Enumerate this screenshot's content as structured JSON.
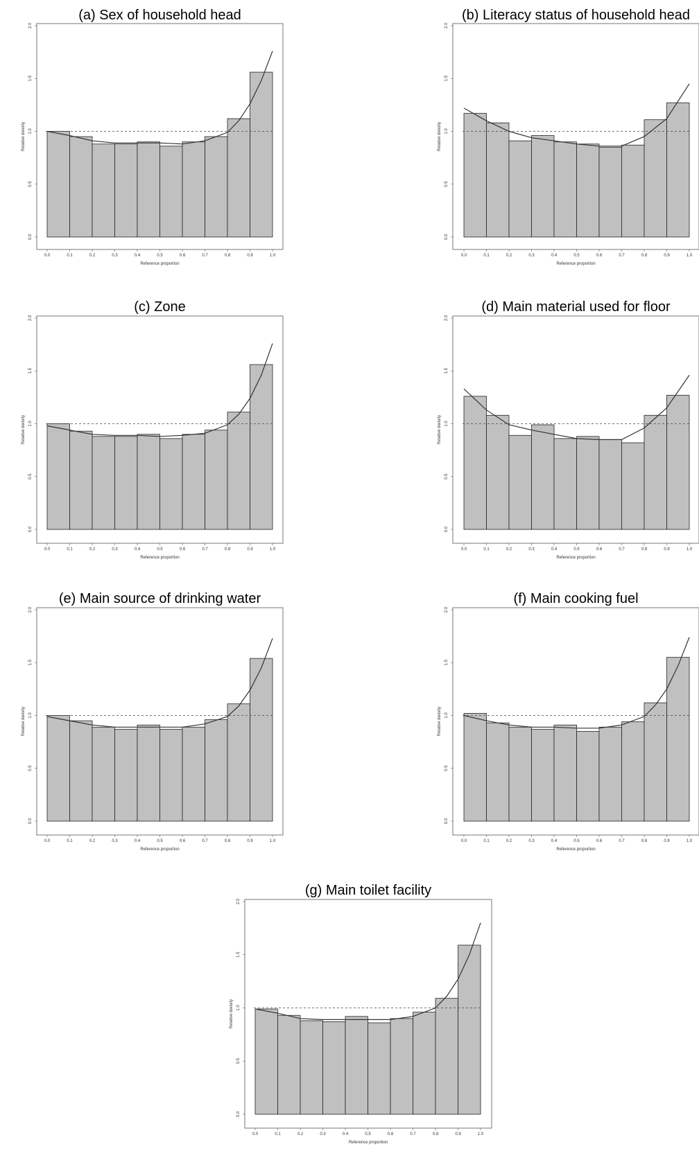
{
  "chart_data": [
    {
      "type": "bar",
      "title": "(a) Sex of household head",
      "xlabel": "Reference proportion",
      "ylabel": "Relative density",
      "xlim": [
        0,
        1
      ],
      "ylim": [
        0,
        2
      ],
      "xticks": [
        "0.0",
        "0.1",
        "0.2",
        "0.3",
        "0.4",
        "0.5",
        "0.6",
        "0.7",
        "0.8",
        "0.9",
        "1.0"
      ],
      "yticks": [
        "0.0",
        "0.5",
        "1.0",
        "1.5",
        "2.0"
      ],
      "bin_edges": [
        0,
        0.1,
        0.2,
        0.3,
        0.4,
        0.5,
        0.6,
        0.7,
        0.8,
        0.9,
        1.0
      ],
      "values": [
        1.0,
        0.95,
        0.88,
        0.88,
        0.9,
        0.86,
        0.9,
        0.95,
        1.12,
        1.56
      ],
      "reference_line": 1.0,
      "smooth_curve": {
        "x": [
          0.0,
          0.1,
          0.2,
          0.3,
          0.4,
          0.5,
          0.6,
          0.7,
          0.8,
          0.85,
          0.9,
          0.95,
          1.0
        ],
        "y": [
          1.0,
          0.96,
          0.91,
          0.89,
          0.89,
          0.89,
          0.88,
          0.91,
          0.99,
          1.1,
          1.26,
          1.48,
          1.76
        ]
      },
      "grid": false,
      "color": "#c0c0c0"
    },
    {
      "type": "bar",
      "title": "(b) Literacy status of household head",
      "xlabel": "Reference proportion",
      "ylabel": "Relative density",
      "xlim": [
        0,
        1
      ],
      "ylim": [
        0,
        2
      ],
      "xticks": [
        "0.0",
        "0.1",
        "0.2",
        "0.3",
        "0.4",
        "0.5",
        "0.6",
        "0.7",
        "0.8",
        "0.9",
        "1.0"
      ],
      "yticks": [
        "0.0",
        "0.5",
        "1.0",
        "1.5",
        "2.0"
      ],
      "bin_edges": [
        0,
        0.1,
        0.2,
        0.3,
        0.4,
        0.5,
        0.6,
        0.7,
        0.8,
        0.9,
        1.0
      ],
      "values": [
        1.17,
        1.08,
        0.91,
        0.96,
        0.9,
        0.88,
        0.85,
        0.87,
        1.11,
        1.27
      ],
      "reference_line": 1.0,
      "smooth_curve": {
        "x": [
          0.0,
          0.1,
          0.2,
          0.3,
          0.4,
          0.5,
          0.6,
          0.7,
          0.8,
          0.9,
          1.0
        ],
        "y": [
          1.22,
          1.1,
          1.0,
          0.94,
          0.91,
          0.88,
          0.86,
          0.86,
          0.95,
          1.12,
          1.45
        ]
      },
      "grid": false,
      "color": "#c0c0c0"
    },
    {
      "type": "bar",
      "title": "(c) Zone",
      "xlabel": "Reference proportion",
      "ylabel": "Relative density",
      "xlim": [
        0,
        1
      ],
      "ylim": [
        0,
        2
      ],
      "xticks": [
        "0.0",
        "0.1",
        "0.2",
        "0.3",
        "0.4",
        "0.5",
        "0.6",
        "0.7",
        "0.8",
        "0.9",
        "1.0"
      ],
      "yticks": [
        "0.0",
        "0.5",
        "1.0",
        "1.5",
        "2.0"
      ],
      "bin_edges": [
        0,
        0.1,
        0.2,
        0.3,
        0.4,
        0.5,
        0.6,
        0.7,
        0.8,
        0.9,
        1.0
      ],
      "values": [
        1.0,
        0.93,
        0.88,
        0.88,
        0.9,
        0.86,
        0.9,
        0.94,
        1.11,
        1.56
      ],
      "reference_line": 1.0,
      "smooth_curve": {
        "x": [
          0.0,
          0.1,
          0.2,
          0.3,
          0.4,
          0.5,
          0.6,
          0.7,
          0.8,
          0.85,
          0.9,
          0.95,
          1.0
        ],
        "y": [
          0.98,
          0.94,
          0.9,
          0.89,
          0.89,
          0.88,
          0.89,
          0.91,
          0.99,
          1.09,
          1.24,
          1.46,
          1.76
        ]
      },
      "grid": false,
      "color": "#c0c0c0"
    },
    {
      "type": "bar",
      "title": "(d) Main material used for floor",
      "xlabel": "Reference proportion",
      "ylabel": "Relative density",
      "xlim": [
        0,
        1
      ],
      "ylim": [
        0,
        2
      ],
      "xticks": [
        "0.0",
        "0.1",
        "0.2",
        "0.3",
        "0.4",
        "0.5",
        "0.6",
        "0.7",
        "0.8",
        "0.9",
        "1.0"
      ],
      "yticks": [
        "0.0",
        "0.5",
        "1.0",
        "1.5",
        "2.0"
      ],
      "bin_edges": [
        0,
        0.1,
        0.2,
        0.3,
        0.4,
        0.5,
        0.6,
        0.7,
        0.8,
        0.9,
        1.0
      ],
      "values": [
        1.26,
        1.08,
        0.89,
        0.99,
        0.86,
        0.88,
        0.85,
        0.82,
        1.08,
        1.27
      ],
      "reference_line": 1.0,
      "smooth_curve": {
        "x": [
          0.0,
          0.1,
          0.2,
          0.3,
          0.4,
          0.5,
          0.6,
          0.7,
          0.8,
          0.9,
          1.0
        ],
        "y": [
          1.33,
          1.13,
          0.99,
          0.94,
          0.9,
          0.86,
          0.85,
          0.85,
          0.96,
          1.15,
          1.46
        ]
      },
      "grid": false,
      "color": "#c0c0c0"
    },
    {
      "type": "bar",
      "title": "(e) Main source of drinking water",
      "xlabel": "Reference proportion",
      "ylabel": "Relative density",
      "xlim": [
        0,
        1
      ],
      "ylim": [
        0,
        2
      ],
      "xticks": [
        "0.0",
        "0.1",
        "0.2",
        "0.3",
        "0.4",
        "0.5",
        "0.6",
        "0.7",
        "0.8",
        "0.9",
        "1.0"
      ],
      "yticks": [
        "0.0",
        "0.5",
        "1.0",
        "1.5",
        "2.0"
      ],
      "bin_edges": [
        0,
        0.1,
        0.2,
        0.3,
        0.4,
        0.5,
        0.6,
        0.7,
        0.8,
        0.9,
        1.0
      ],
      "values": [
        1.0,
        0.95,
        0.89,
        0.87,
        0.91,
        0.87,
        0.89,
        0.96,
        1.11,
        1.54
      ],
      "reference_line": 1.0,
      "smooth_curve": {
        "x": [
          0.0,
          0.1,
          0.2,
          0.3,
          0.4,
          0.5,
          0.6,
          0.7,
          0.8,
          0.85,
          0.9,
          0.95,
          1.0
        ],
        "y": [
          0.99,
          0.95,
          0.91,
          0.89,
          0.89,
          0.89,
          0.89,
          0.92,
          0.99,
          1.09,
          1.24,
          1.45,
          1.73
        ]
      },
      "grid": false,
      "color": "#c0c0c0"
    },
    {
      "type": "bar",
      "title": "(f) Main cooking fuel",
      "xlabel": "Reference proportion",
      "ylabel": "Relative density",
      "xlim": [
        0,
        1
      ],
      "ylim": [
        0,
        2
      ],
      "xticks": [
        "0.0",
        "0.1",
        "0.2",
        "0.3",
        "0.4",
        "0.5",
        "0.6",
        "0.7",
        "0.8",
        "0.9",
        "1.0"
      ],
      "yticks": [
        "0.0",
        "0.5",
        "1.0",
        "1.5",
        "2.0"
      ],
      "bin_edges": [
        0,
        0.1,
        0.2,
        0.3,
        0.4,
        0.5,
        0.6,
        0.7,
        0.8,
        0.9,
        1.0
      ],
      "values": [
        1.02,
        0.93,
        0.89,
        0.87,
        0.91,
        0.85,
        0.89,
        0.94,
        1.12,
        1.55
      ],
      "reference_line": 1.0,
      "smooth_curve": {
        "x": [
          0.0,
          0.1,
          0.2,
          0.3,
          0.4,
          0.5,
          0.6,
          0.7,
          0.8,
          0.85,
          0.9,
          0.95,
          1.0
        ],
        "y": [
          1.0,
          0.95,
          0.91,
          0.89,
          0.89,
          0.88,
          0.88,
          0.91,
          0.99,
          1.1,
          1.25,
          1.47,
          1.74
        ]
      },
      "grid": false,
      "color": "#c0c0c0"
    },
    {
      "type": "bar",
      "title": "(g) Main toilet facility",
      "xlabel": "Reference proportion",
      "ylabel": "Relative density",
      "xlim": [
        0,
        1
      ],
      "ylim": [
        0,
        2
      ],
      "xticks": [
        "0.0",
        "0.1",
        "0.2",
        "0.3",
        "0.4",
        "0.5",
        "0.6",
        "0.7",
        "0.8",
        "0.9",
        "1.0"
      ],
      "yticks": [
        "0.0",
        "0.5",
        "1.0",
        "1.5",
        "2.0"
      ],
      "bin_edges": [
        0,
        0.1,
        0.2,
        0.3,
        0.4,
        0.5,
        0.6,
        0.7,
        0.8,
        0.9,
        1.0
      ],
      "values": [
        0.99,
        0.93,
        0.88,
        0.87,
        0.92,
        0.86,
        0.9,
        0.96,
        1.09,
        1.59
      ],
      "reference_line": 1.0,
      "smooth_curve": {
        "x": [
          0.0,
          0.1,
          0.2,
          0.3,
          0.4,
          0.5,
          0.6,
          0.7,
          0.8,
          0.85,
          0.9,
          0.95,
          1.0
        ],
        "y": [
          0.99,
          0.95,
          0.9,
          0.89,
          0.89,
          0.89,
          0.89,
          0.92,
          1.0,
          1.11,
          1.27,
          1.5,
          1.8
        ]
      },
      "grid": false,
      "color": "#c0c0c0"
    }
  ]
}
